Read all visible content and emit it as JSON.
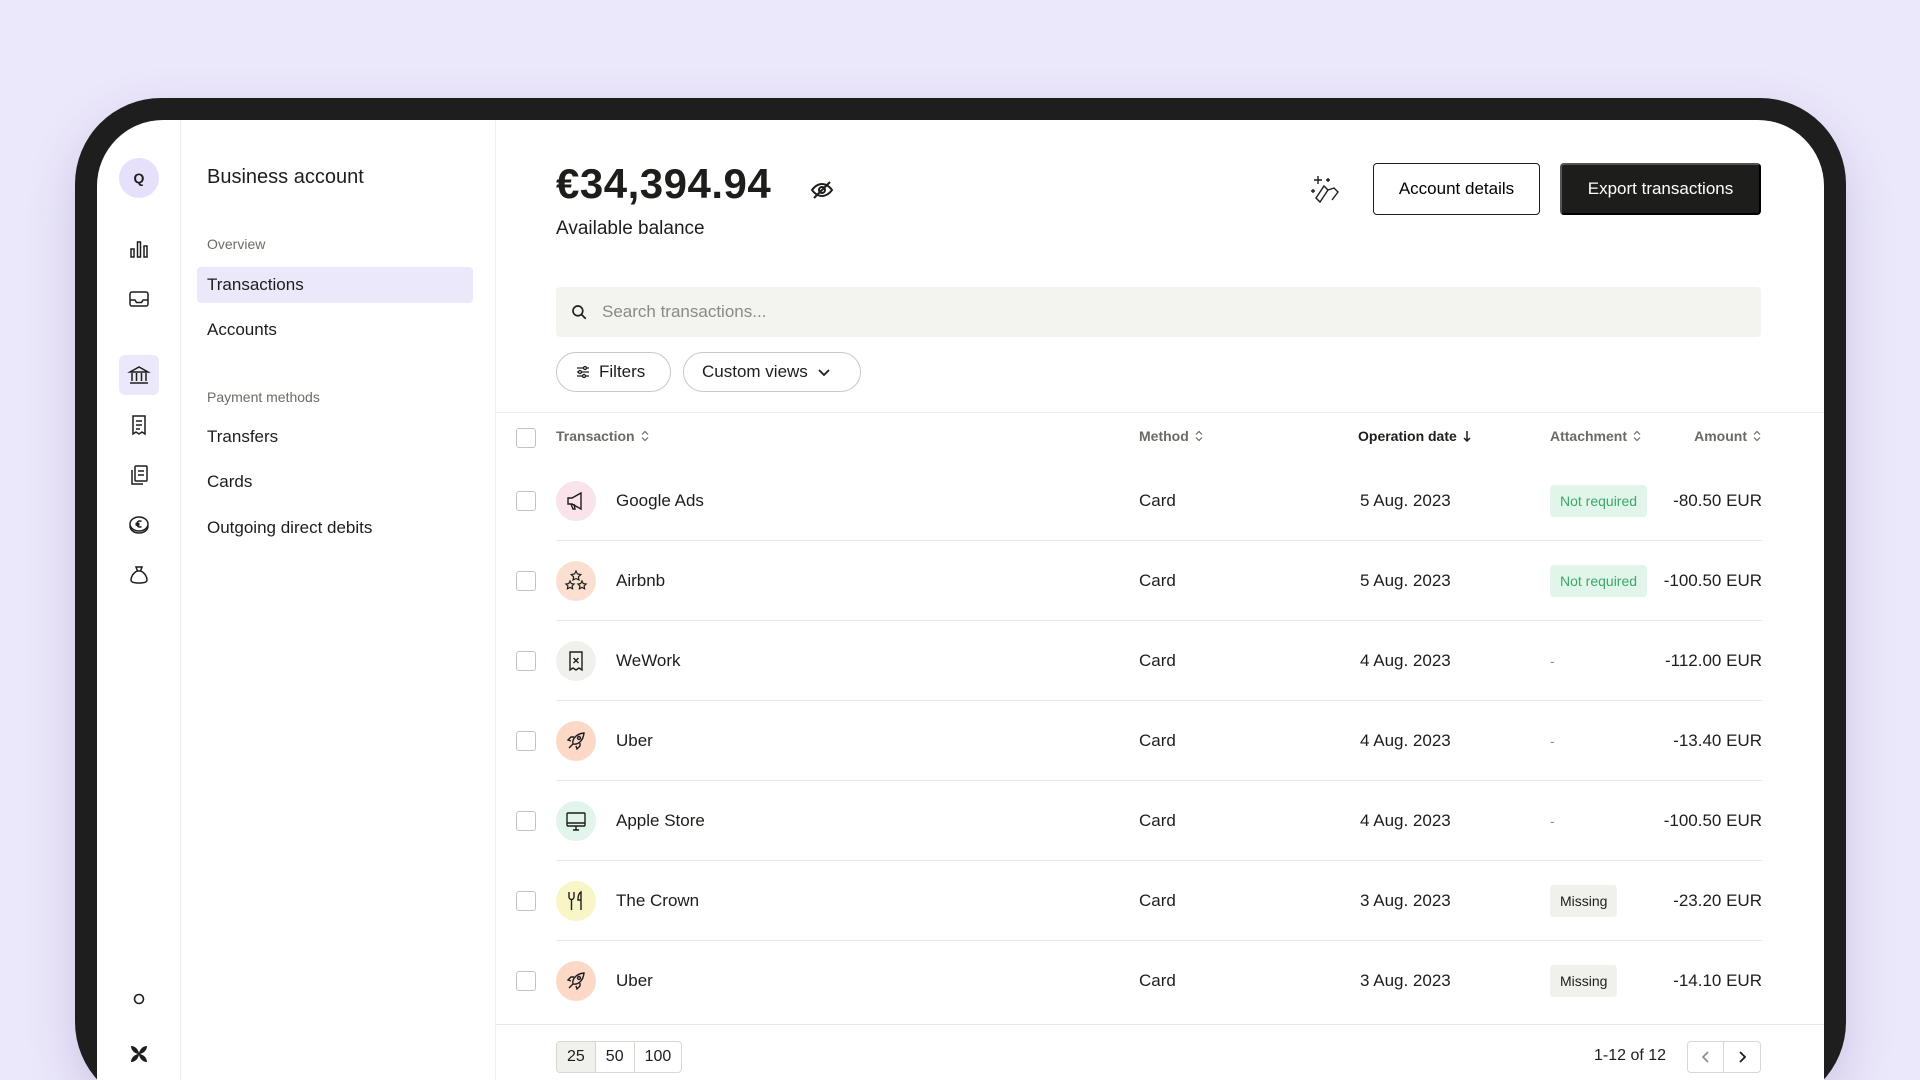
{
  "rail": {
    "avatar_initial": "Q",
    "icons": [
      "bar-chart-icon",
      "inbox-icon",
      "bank-icon",
      "receipt-icon",
      "documents-icon",
      "euro-coin-icon",
      "money-bag-icon",
      "circle-icon",
      "brand-logo-icon"
    ],
    "active": "bank-icon"
  },
  "nav": {
    "title": "Business account",
    "sections": [
      {
        "label": "Overview",
        "items": [
          "Transactions",
          "Accounts"
        ]
      },
      {
        "label": "Payment methods",
        "items": [
          "Transfers",
          "Cards",
          "Outgoing direct debits"
        ]
      }
    ],
    "active_item": "Transactions"
  },
  "header": {
    "balance": "€34,394.94",
    "balance_label": "Available balance",
    "account_details_label": "Account details",
    "export_label": "Export transactions"
  },
  "search": {
    "placeholder": "Search transactions..."
  },
  "filters": {
    "filters_label": "Filters",
    "custom_views_label": "Custom views"
  },
  "table": {
    "columns": {
      "transaction": "Transaction",
      "method": "Method",
      "operation_date": "Operation date",
      "attachment": "Attachment",
      "amount": "Amount"
    },
    "rows": [
      {
        "name": "Google Ads",
        "icon": "megaphone-icon",
        "icon_bg": "#fbe3ec",
        "method": "Card",
        "date": "5 Aug. 2023",
        "attachment": "Not required",
        "attachment_type": "ok",
        "amount": "-80.50 EUR"
      },
      {
        "name": "Airbnb",
        "icon": "stars-icon",
        "icon_bg": "#fbe0d2",
        "method": "Card",
        "date": "5 Aug. 2023",
        "attachment": "Not required",
        "attachment_type": "ok",
        "amount": "-100.50 EUR"
      },
      {
        "name": "WeWork",
        "icon": "receipt-x-icon",
        "icon_bg": "#f0f0ec",
        "method": "Card",
        "date": "4 Aug. 2023",
        "attachment": "-",
        "attachment_type": "none",
        "amount": "-112.00 EUR"
      },
      {
        "name": "Uber",
        "icon": "rocket-icon",
        "icon_bg": "#fbd9c6",
        "method": "Card",
        "date": "4 Aug. 2023",
        "attachment": "-",
        "attachment_type": "none",
        "amount": "-13.40 EUR"
      },
      {
        "name": "Apple Store",
        "icon": "monitor-icon",
        "icon_bg": "#e1f5ea",
        "method": "Card",
        "date": "4 Aug. 2023",
        "attachment": "-",
        "attachment_type": "none",
        "amount": "-100.50 EUR"
      },
      {
        "name": "The Crown",
        "icon": "fork-knife-icon",
        "icon_bg": "#f8f6c6",
        "method": "Card",
        "date": "3 Aug. 2023",
        "attachment": "Missing",
        "attachment_type": "missing",
        "amount": "-23.20 EUR"
      },
      {
        "name": "Uber",
        "icon": "rocket-icon",
        "icon_bg": "#fbd9c6",
        "method": "Card",
        "date": "3 Aug. 2023",
        "attachment": "Missing",
        "attachment_type": "missing",
        "amount": "-14.10 EUR"
      }
    ]
  },
  "pagination": {
    "sizes": [
      "25",
      "50",
      "100"
    ],
    "selected_size": "25",
    "count": "1-12 of 12"
  },
  "colors": {
    "background": "#ece8fb",
    "accent": "#ece8fb",
    "dark_button": "#1d1d1b",
    "badge_ok_bg": "#e1f5ea",
    "badge_ok_text": "#3ba86a"
  }
}
